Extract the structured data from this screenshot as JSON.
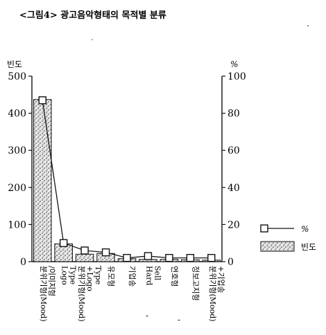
{
  "chart_data": {
    "type": "bar",
    "title": "<그림4> 광고음악형태의 목적별 분류",
    "ylabel_left": "빈도",
    "ylabel_right": "%",
    "ylim_left": [
      0,
      500
    ],
    "ylim_right": [
      0,
      100
    ],
    "yticks_left": [
      "0",
      "100",
      "200",
      "300",
      "400",
      "500"
    ],
    "yticks_right": [
      "0",
      "20",
      "40",
      "60",
      "80",
      "100"
    ],
    "categories": [
      "분위기형(Mood) /이미지형",
      "Logo Type",
      "분위기형(Mood) +Logo Type",
      "유모형",
      "기업송",
      "Hard Sell",
      "연호형",
      "정보고지형",
      "분위기형(Mood) +기업송"
    ],
    "series": [
      {
        "name": "빈도",
        "kind": "bar",
        "axis": "left",
        "values": [
          437,
          48,
          20,
          22,
          8,
          6,
          6,
          5,
          4
        ]
      },
      {
        "name": "%",
        "kind": "line",
        "axis": "right",
        "values": [
          87,
          10,
          6,
          5,
          2,
          3,
          2,
          2,
          2
        ]
      }
    ],
    "legend_position": "right",
    "grid": false
  },
  "stray_marks": [
    ".",
    "˙",
    "-",
    "-"
  ]
}
